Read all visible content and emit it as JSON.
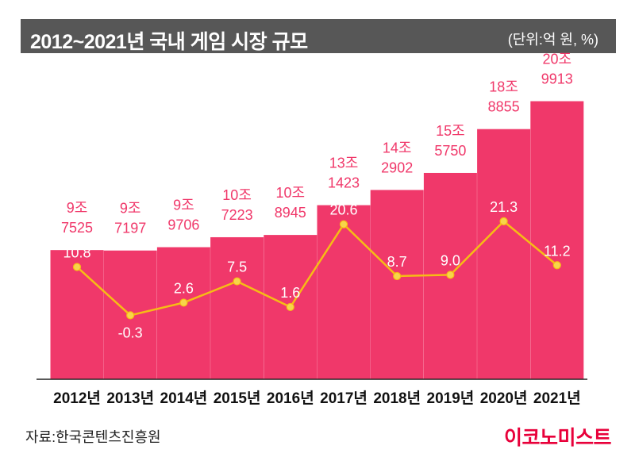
{
  "header": {
    "title": "2012~2021년 국내 게임 시장 규모",
    "unit": "(단위:억 원, %)"
  },
  "footer": {
    "source": "자료:한국콘텐츠진흥원",
    "logo": "이코노미스트"
  },
  "colors": {
    "bar": "#f0386a",
    "bar_label": "#f0386a",
    "line": "#f6bc15",
    "point_fill": "#f7d54a",
    "header_bg": "#575757",
    "axis": "#222222"
  },
  "chart_data": {
    "type": "bar",
    "categories": [
      "2012년",
      "2013년",
      "2014년",
      "2015년",
      "2016년",
      "2017년",
      "2018년",
      "2019년",
      "2020년",
      "2021년"
    ],
    "series": [
      {
        "type": "bar",
        "values": [
          97525,
          97197,
          99706,
          107223,
          108945,
          131423,
          142902,
          155750,
          188855,
          209913
        ],
        "labels": [
          [
            "9조",
            "7525"
          ],
          [
            "9조",
            "7197"
          ],
          [
            "9조",
            "9706"
          ],
          [
            "10조",
            "7223"
          ],
          [
            "10조",
            "8945"
          ],
          [
            "13조",
            "1423"
          ],
          [
            "14조",
            "2902"
          ],
          [
            "15조",
            "5750"
          ],
          [
            "18조",
            "8855"
          ],
          [
            "20조",
            "9913"
          ]
        ]
      },
      {
        "type": "line",
        "values": [
          10.8,
          -0.3,
          2.6,
          7.5,
          1.6,
          20.6,
          8.7,
          9.0,
          21.3,
          11.2
        ],
        "labels": [
          "10.8",
          "-0.3",
          "2.6",
          "7.5",
          "1.6",
          "20.6",
          "8.7",
          "9.0",
          "21.3",
          "11.2"
        ]
      }
    ],
    "ylim_bar": [
      0,
      230000
    ],
    "ylim_line": [
      -15,
      55
    ],
    "grid": false,
    "legend": "none"
  }
}
